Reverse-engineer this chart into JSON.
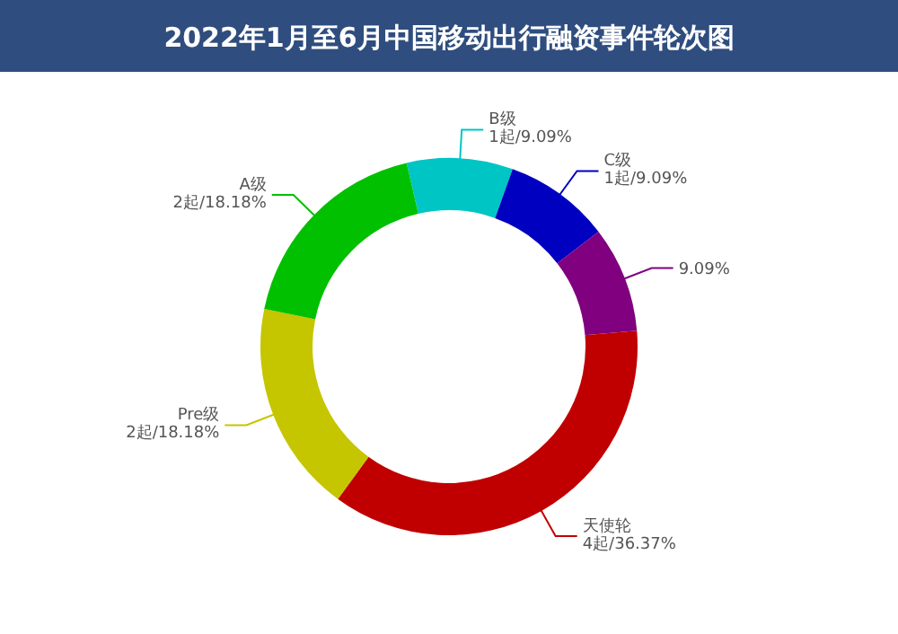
{
  "chart_data": {
    "type": "donut",
    "title": "2022年1月至6月中国移动出行融资事件轮次图",
    "categories": [
      "B级",
      "C级",
      null,
      "天使轮",
      "Pre级",
      "A级"
    ],
    "values": [
      9.09,
      9.09,
      9.09,
      36.37,
      18.18,
      18.18
    ],
    "value_labels": [
      "1起/9.09%",
      "1起/9.09%",
      "9.09%",
      "4起/36.37%",
      "2起/18.18%",
      "2起/18.18%"
    ],
    "colors": [
      "#00c5c5",
      "#0000c0",
      "#800080",
      "#c00000",
      "#c5c500",
      "#00c000"
    ]
  }
}
